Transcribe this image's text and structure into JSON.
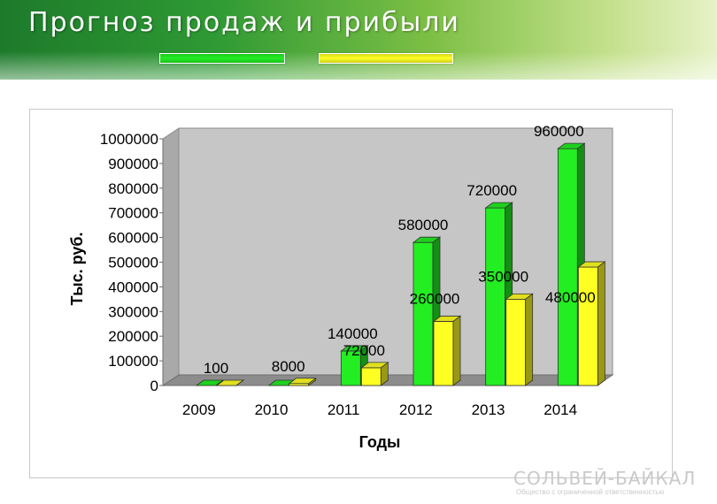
{
  "page": {
    "title": "Прогноз продаж и прибыли"
  },
  "legend": {
    "series_colors": [
      "#22ee22",
      "#ffff22"
    ]
  },
  "logo": {
    "name": "СОЛЬВЕЙ-БАЙКАЛ",
    "tagline": "Общество с ограниченной ответственностью"
  },
  "chart_data": {
    "type": "bar",
    "title": "",
    "xlabel": "Годы",
    "ylabel": "Тыс. руб.",
    "ylim": [
      0,
      1000000
    ],
    "yticks": [
      0,
      100000,
      200000,
      300000,
      400000,
      500000,
      600000,
      700000,
      800000,
      900000,
      1000000
    ],
    "categories": [
      "2009",
      "2010",
      "2011",
      "2012",
      "2013",
      "2014"
    ],
    "series": [
      {
        "values": [
          0,
          0,
          140000,
          580000,
          720000,
          960000
        ],
        "labels": [
          "",
          "",
          "140000",
          "580000",
          "720000",
          "960000"
        ],
        "color": "#22ee22"
      },
      {
        "values": [
          100,
          8000,
          72000,
          260000,
          350000,
          480000
        ],
        "labels": [
          "100",
          "8000",
          "72000",
          "260000",
          "350000",
          "480000"
        ],
        "color": "#ffff22"
      }
    ],
    "grid": false,
    "legend": "top",
    "style": "3d-column"
  }
}
